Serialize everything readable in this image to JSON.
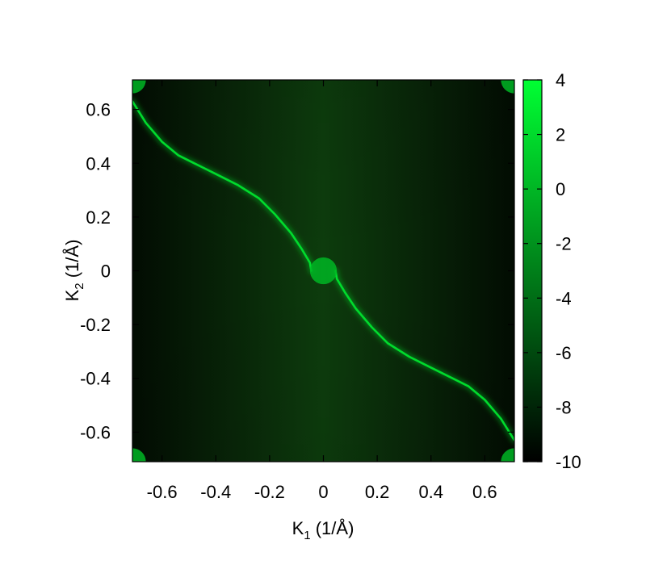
{
  "chart_data": {
    "type": "heatmap",
    "title": "",
    "xlabel": {
      "main": "K",
      "sub": "1",
      "unit": " (1/Å)"
    },
    "ylabel": {
      "main": "K",
      "sub": "2",
      "unit": " (1/Å)"
    },
    "xlim": [
      -0.71,
      0.71
    ],
    "ylim": [
      -0.71,
      0.71
    ],
    "xticks": [
      -0.6,
      -0.4,
      -0.2,
      0,
      0.2,
      0.4,
      0.6
    ],
    "yticks": [
      0.6,
      0.4,
      0.2,
      0,
      -0.2,
      -0.4,
      -0.6
    ],
    "xtick_labels": [
      "-0.6",
      "-0.4",
      "-0.2",
      "0",
      "0.2",
      "0.4",
      "0.6"
    ],
    "ytick_labels": [
      "0.6",
      "0.4",
      "0.2",
      "0",
      "-0.2",
      "-0.4",
      "-0.6"
    ],
    "colorbar": {
      "range": [
        -10,
        4
      ],
      "ticks": [
        4,
        2,
        0,
        -2,
        -4,
        -6,
        -8,
        -10
      ],
      "tick_labels": [
        "4",
        "2",
        "0",
        "-2",
        "-4",
        "-6",
        "-8",
        "-10"
      ],
      "colors": [
        "#000000",
        "#00ff33"
      ]
    },
    "features": {
      "background_level": -7.5,
      "center_lobe": {
        "k1": 0,
        "k2": 0,
        "radius": 0.05,
        "level": 0
      },
      "corner_lobes": [
        {
          "k1": -0.71,
          "k2": 0.71,
          "radius": 0.05
        },
        {
          "k1": 0.71,
          "k2": 0.71,
          "radius": 0.05
        },
        {
          "k1": -0.71,
          "k2": -0.71,
          "radius": 0.05
        },
        {
          "k1": 0.71,
          "k2": -0.71,
          "radius": 0.05
        }
      ],
      "arc_level": 2,
      "arc": [
        [
          -0.71,
          0.63
        ],
        [
          -0.66,
          0.55
        ],
        [
          -0.6,
          0.48
        ],
        [
          -0.54,
          0.43
        ],
        [
          -0.48,
          0.4
        ],
        [
          -0.4,
          0.36
        ],
        [
          -0.32,
          0.32
        ],
        [
          -0.24,
          0.27
        ],
        [
          -0.18,
          0.21
        ],
        [
          -0.12,
          0.14
        ],
        [
          -0.08,
          0.08
        ],
        [
          -0.05,
          0.03
        ],
        [
          -0.045,
          0.0
        ]
      ],
      "arc_mirror": "point-symmetric about origin"
    }
  }
}
